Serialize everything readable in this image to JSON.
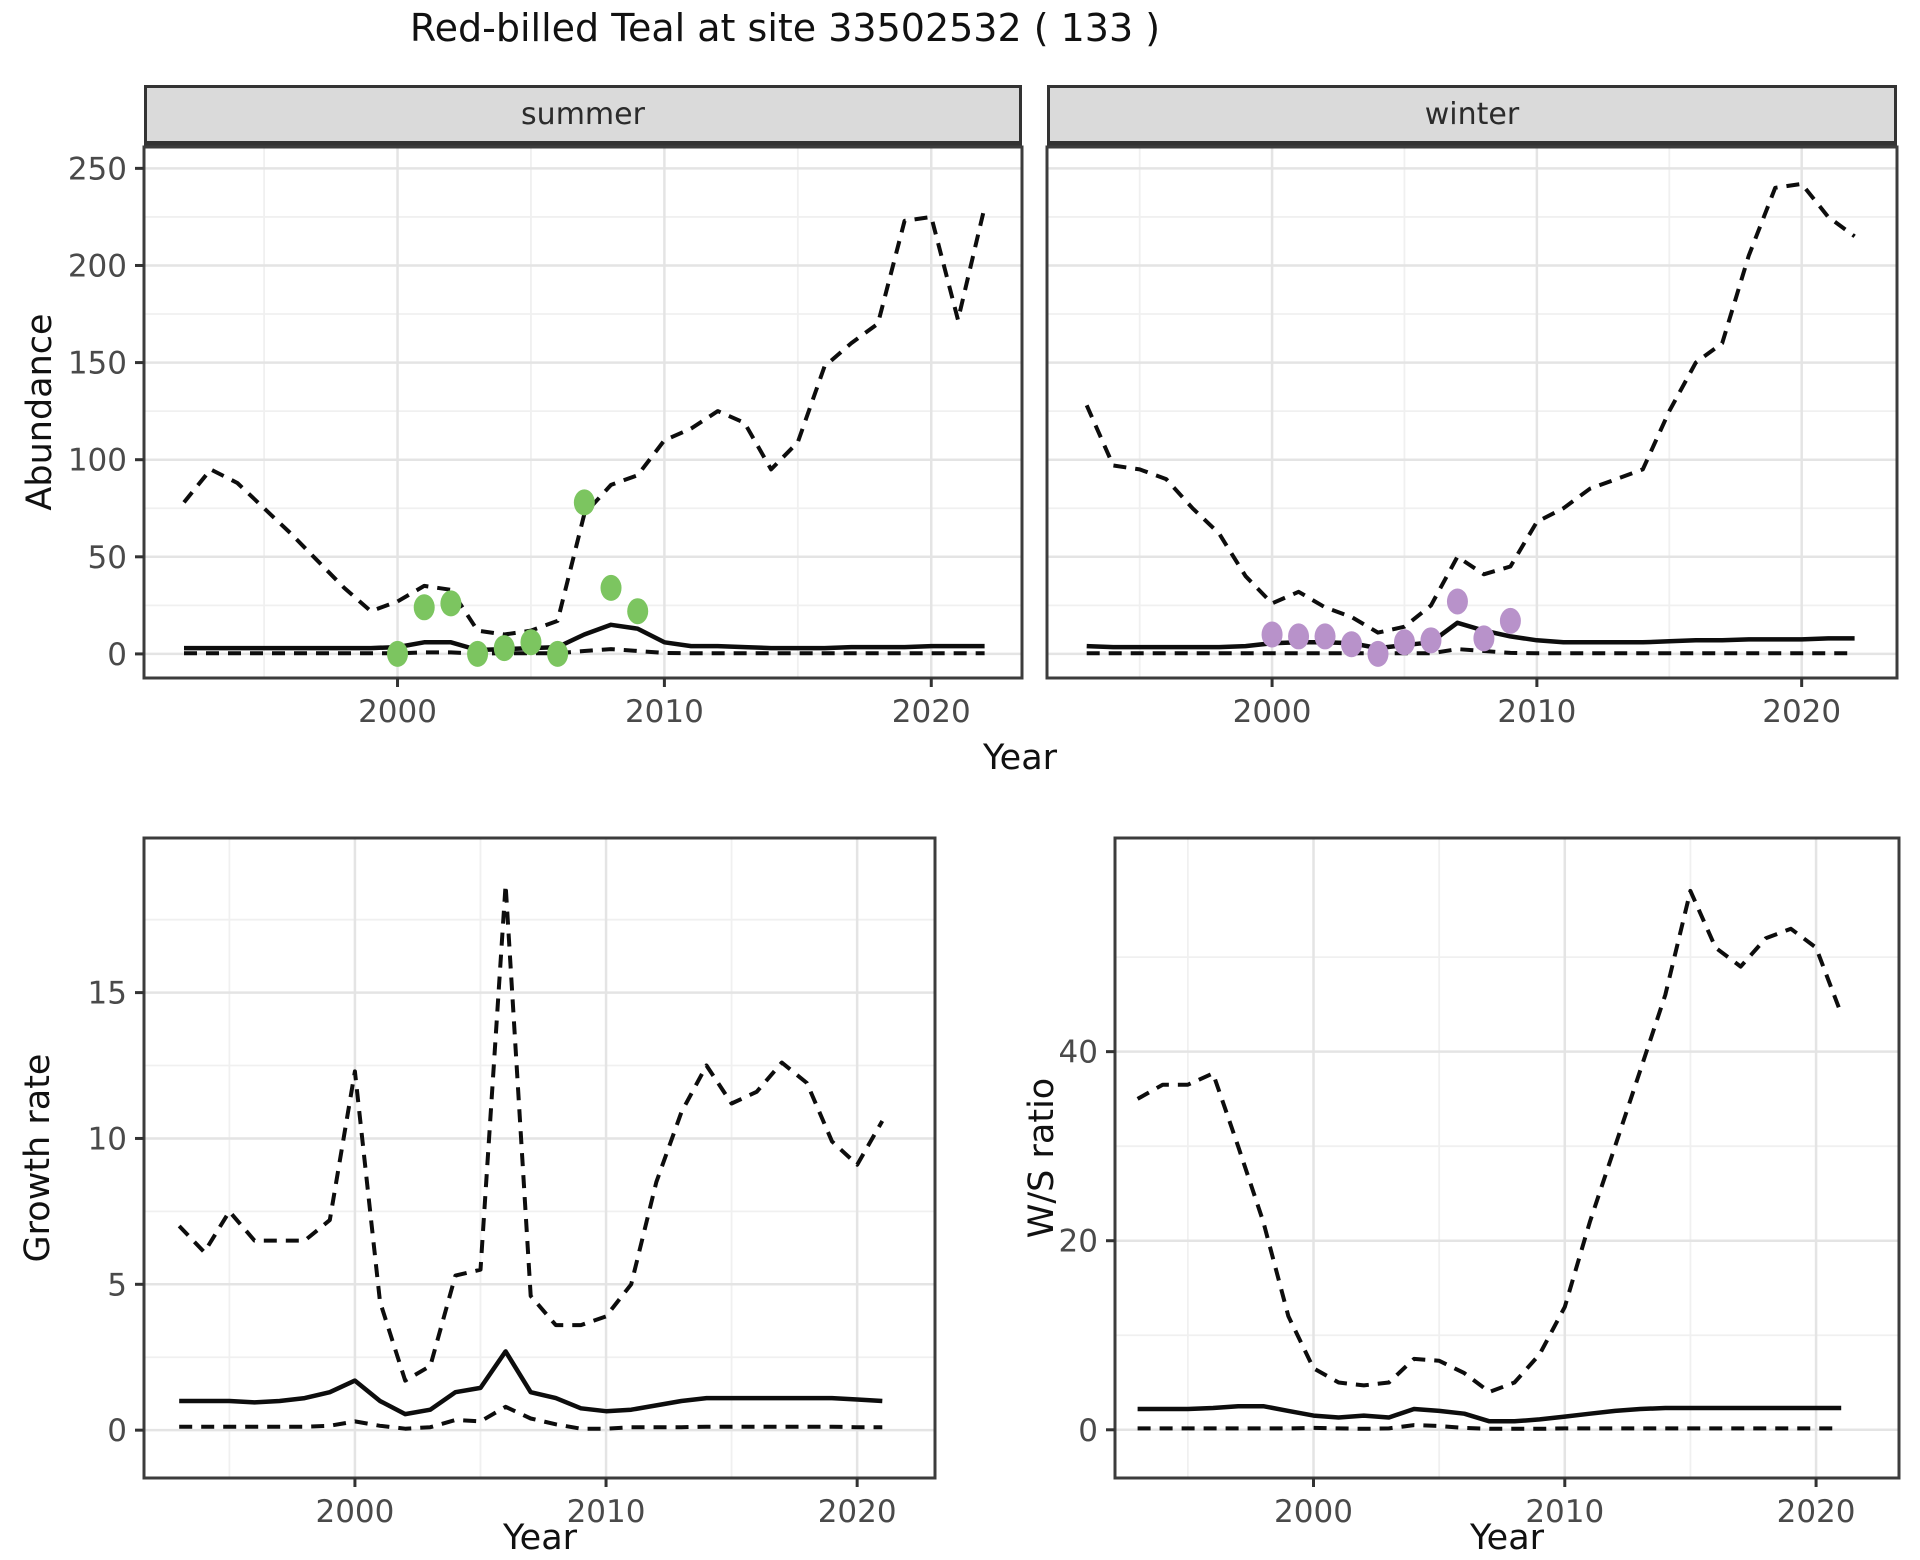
{
  "title": "Red-billed Teal at site 33502532 ( 133 )",
  "facets": {
    "summer": "summer",
    "winter": "winter"
  },
  "axis_titles": {
    "y_top": "Abundance",
    "x_top": "Year",
    "y_bottom_left": "Growth rate",
    "x_bottom_left": "Year",
    "y_bottom_right": "W/S ratio",
    "x_bottom_right": "Year"
  },
  "colors": {
    "summer_points": "#7CC560",
    "winter_points": "#B892CA",
    "line": "#0d0d0d",
    "strip_bg": "#DADADA",
    "panel_border": "#3C3C3C",
    "grid_major": "#E4E4E4",
    "grid_minor": "#F0F0F0",
    "axis_text": "#4a4a4a"
  },
  "chart_data": [
    {
      "id": "abundance_summer",
      "type": "line",
      "facet_label": "summer",
      "xlabel": "Year",
      "ylabel": "Abundance",
      "xlim": [
        1990.5,
        2023.4
      ],
      "ylim": [
        -12.4,
        261
      ],
      "x_ticks": [
        2000,
        2010,
        2020
      ],
      "x_minor": [
        1995,
        2005,
        2015
      ],
      "y_ticks": [
        0,
        50,
        100,
        150,
        200,
        250
      ],
      "y_minor": [
        25,
        75,
        125,
        175,
        225
      ],
      "series": [
        {
          "name": "upper_97_5_percentile",
          "style": "dashed",
          "x": [
            1992,
            1993,
            1994,
            1995,
            1996,
            1997,
            1998,
            1999,
            2000,
            2001,
            2002,
            2003,
            2004,
            2005,
            2006,
            2007,
            2008,
            2009,
            2010,
            2011,
            2012,
            2013,
            2014,
            2015,
            2016,
            2017,
            2018,
            2019,
            2020,
            2021,
            2022
          ],
          "y": [
            78,
            95,
            88,
            75,
            62,
            48,
            34,
            22,
            27,
            35,
            33,
            12,
            10,
            12,
            17,
            72,
            87,
            92,
            110,
            116,
            125,
            119,
            95,
            109,
            148,
            160,
            170,
            223,
            225,
            172,
            230
          ]
        },
        {
          "name": "median_model_estimate",
          "style": "solid",
          "x": [
            1992,
            1993,
            1994,
            1995,
            1996,
            1997,
            1998,
            1999,
            2000,
            2001,
            2002,
            2003,
            2004,
            2005,
            2006,
            2007,
            2008,
            2009,
            2010,
            2011,
            2012,
            2013,
            2014,
            2015,
            2016,
            2017,
            2018,
            2019,
            2020,
            2021,
            2022
          ],
          "y": [
            3,
            3,
            3,
            3,
            3,
            3,
            3,
            3,
            3.5,
            6,
            6,
            2,
            2.5,
            3,
            3.5,
            10,
            15,
            13,
            6,
            4,
            4,
            3.5,
            3,
            3,
            3,
            3.5,
            3.5,
            3.5,
            4,
            4,
            4
          ]
        },
        {
          "name": "lower_2_5_percentile",
          "style": "dashed",
          "x": [
            1992,
            1993,
            1994,
            1995,
            1996,
            1997,
            1998,
            1999,
            2000,
            2001,
            2002,
            2003,
            2004,
            2005,
            2006,
            2007,
            2008,
            2009,
            2010,
            2011,
            2012,
            2013,
            2014,
            2015,
            2016,
            2017,
            2018,
            2019,
            2020,
            2021,
            2022
          ],
          "y": [
            0.3,
            0.3,
            0.3,
            0.3,
            0.3,
            0.3,
            0.3,
            0.3,
            0.3,
            0.8,
            0.8,
            0.2,
            0.3,
            0.3,
            0.3,
            1.5,
            2.5,
            1.5,
            0.5,
            0.3,
            0.3,
            0.3,
            0.3,
            0.3,
            0.3,
            0.3,
            0.3,
            0.3,
            0.3,
            0.3,
            0.3
          ]
        },
        {
          "name": "observed_counts",
          "style": "points",
          "color": "#7CC560",
          "x": [
            2000,
            2001,
            2002,
            2003,
            2004,
            2005,
            2006,
            2007,
            2008,
            2009
          ],
          "y": [
            0,
            24,
            26,
            0,
            3,
            6,
            0,
            78,
            34,
            22
          ]
        }
      ]
    },
    {
      "id": "abundance_winter",
      "type": "line",
      "facet_label": "winter",
      "xlabel": "Year",
      "ylabel": "Abundance",
      "xlim": [
        1991.5,
        2023.6
      ],
      "ylim": [
        -12.4,
        261
      ],
      "x_ticks": [
        2000,
        2010,
        2020
      ],
      "x_minor": [
        1995,
        2005,
        2015
      ],
      "y_ticks": [
        0,
        50,
        100,
        150,
        200,
        250
      ],
      "y_minor": [
        25,
        75,
        125,
        175,
        225
      ],
      "series": [
        {
          "name": "upper_97_5_percentile",
          "style": "dashed",
          "x": [
            1993,
            1994,
            1995,
            1996,
            1997,
            1998,
            1999,
            2000,
            2001,
            2002,
            2003,
            2004,
            2005,
            2006,
            2007,
            2008,
            2009,
            2010,
            2011,
            2012,
            2013,
            2014,
            2015,
            2016,
            2017,
            2018,
            2019,
            2020,
            2021,
            2022
          ],
          "y": [
            128,
            97,
            95,
            90,
            75,
            62,
            40,
            26,
            32,
            24,
            19,
            11,
            14,
            25,
            50,
            41,
            45,
            68,
            75,
            85,
            90,
            95,
            125,
            150,
            160,
            205,
            240,
            242,
            225,
            215
          ]
        },
        {
          "name": "median_model_estimate",
          "style": "solid",
          "x": [
            1993,
            1994,
            1995,
            1996,
            1997,
            1998,
            1999,
            2000,
            2001,
            2002,
            2003,
            2004,
            2005,
            2006,
            2007,
            2008,
            2009,
            2010,
            2011,
            2012,
            2013,
            2014,
            2015,
            2016,
            2017,
            2018,
            2019,
            2020,
            2021,
            2022
          ],
          "y": [
            4,
            3.5,
            3.5,
            3.5,
            3.5,
            3.5,
            4,
            5.5,
            6,
            6,
            5.5,
            3,
            4.5,
            6,
            16,
            12,
            9,
            7,
            6,
            6,
            6,
            6,
            6.5,
            7,
            7,
            7.5,
            7.5,
            7.5,
            8,
            8
          ]
        },
        {
          "name": "lower_2_5_percentile",
          "style": "dashed",
          "x": [
            1993,
            1994,
            1995,
            1996,
            1997,
            1998,
            1999,
            2000,
            2001,
            2002,
            2003,
            2004,
            2005,
            2006,
            2007,
            2008,
            2009,
            2010,
            2011,
            2012,
            2013,
            2014,
            2015,
            2016,
            2017,
            2018,
            2019,
            2020,
            2021,
            2022
          ],
          "y": [
            0.3,
            0.3,
            0.3,
            0.3,
            0.3,
            0.3,
            0.3,
            0.3,
            0.3,
            0.3,
            0.3,
            0.3,
            0.3,
            0.3,
            2.5,
            1.5,
            0.5,
            0.3,
            0.3,
            0.3,
            0.3,
            0.3,
            0.3,
            0.3,
            0.3,
            0.3,
            0.3,
            0.3,
            0.3,
            0.3
          ]
        },
        {
          "name": "observed_counts",
          "style": "points",
          "color": "#B892CA",
          "x": [
            2000,
            2001,
            2002,
            2003,
            2004,
            2005,
            2006,
            2007,
            2008,
            2009
          ],
          "y": [
            10,
            9,
            9,
            5,
            0,
            6,
            7,
            27,
            8,
            17
          ]
        }
      ]
    },
    {
      "id": "growth_rate",
      "type": "line",
      "facet_label": null,
      "xlabel": "Year",
      "ylabel": "Growth rate",
      "xlim": [
        1991.6,
        2023.1
      ],
      "ylim": [
        -1.64,
        20.3
      ],
      "x_ticks": [
        2000,
        2010,
        2020
      ],
      "x_minor": [
        1995,
        2005,
        2015
      ],
      "y_ticks": [
        0,
        5,
        10,
        15
      ],
      "y_minor": [
        2.5,
        7.5,
        12.5,
        17.5
      ],
      "series": [
        {
          "name": "upper_97_5_percentile",
          "style": "dashed",
          "x": [
            1993,
            1994,
            1995,
            1996,
            1997,
            1998,
            1999,
            2000,
            2001,
            2002,
            2003,
            2004,
            2005,
            2006,
            2007,
            2008,
            2009,
            2010,
            2011,
            2012,
            2013,
            2014,
            2015,
            2016,
            2017,
            2018,
            2019,
            2020,
            2021
          ],
          "y": [
            7,
            6.1,
            7.5,
            6.5,
            6.5,
            6.5,
            7.2,
            12.3,
            4.4,
            1.7,
            2.2,
            5.3,
            5.5,
            18.7,
            4.6,
            3.6,
            3.6,
            3.9,
            5,
            8.5,
            10.9,
            12.5,
            11.2,
            11.6,
            12.6,
            11.9,
            9.9,
            9.1,
            10.6
          ]
        },
        {
          "name": "median_model_estimate",
          "style": "solid",
          "x": [
            1993,
            1994,
            1995,
            1996,
            1997,
            1998,
            1999,
            2000,
            2001,
            2002,
            2003,
            2004,
            2005,
            2006,
            2007,
            2008,
            2009,
            2010,
            2011,
            2012,
            2013,
            2014,
            2015,
            2016,
            2017,
            2018,
            2019,
            2020,
            2021
          ],
          "y": [
            1,
            1,
            1,
            0.95,
            1,
            1.1,
            1.3,
            1.7,
            1,
            0.55,
            0.7,
            1.3,
            1.45,
            2.7,
            1.3,
            1.1,
            0.75,
            0.65,
            0.7,
            0.85,
            1,
            1.1,
            1.1,
            1.1,
            1.1,
            1.1,
            1.1,
            1.05,
            1
          ]
        },
        {
          "name": "lower_2_5_percentile",
          "style": "dashed",
          "x": [
            1993,
            1994,
            1995,
            1996,
            1997,
            1998,
            1999,
            2000,
            2001,
            2002,
            2003,
            2004,
            2005,
            2006,
            2007,
            2008,
            2009,
            2010,
            2011,
            2012,
            2013,
            2014,
            2015,
            2016,
            2017,
            2018,
            2019,
            2020,
            2021
          ],
          "y": [
            0.12,
            0.12,
            0.12,
            0.12,
            0.12,
            0.12,
            0.15,
            0.3,
            0.15,
            0.05,
            0.1,
            0.35,
            0.3,
            0.8,
            0.4,
            0.2,
            0.05,
            0.05,
            0.1,
            0.1,
            0.1,
            0.12,
            0.12,
            0.12,
            0.12,
            0.12,
            0.12,
            0.1,
            0.1
          ]
        }
      ]
    },
    {
      "id": "ws_ratio",
      "type": "line",
      "facet_label": null,
      "xlabel": "Year",
      "ylabel": "W/S ratio",
      "xlim": [
        1992.1,
        2023.3
      ],
      "ylim": [
        -5.1,
        62.6
      ],
      "x_ticks": [
        2000,
        2010,
        2020
      ],
      "x_minor": [
        1995,
        2005,
        2015
      ],
      "y_ticks": [
        0,
        20,
        40
      ],
      "y_minor": [
        10,
        30,
        50
      ],
      "series": [
        {
          "name": "upper_97_5_percentile",
          "style": "dashed",
          "x": [
            1993,
            1994,
            1995,
            1996,
            1997,
            1998,
            1999,
            2000,
            2001,
            2002,
            2003,
            2004,
            2005,
            2006,
            2007,
            2008,
            2009,
            2010,
            2011,
            2012,
            2013,
            2014,
            2015,
            2016,
            2017,
            2018,
            2019,
            2020,
            2021
          ],
          "y": [
            35,
            36.5,
            36.5,
            37.7,
            30,
            22,
            12,
            6.5,
            5,
            4.7,
            5,
            7.5,
            7.3,
            6,
            4,
            5,
            8,
            13,
            22,
            30,
            38,
            46,
            57,
            51,
            49,
            52,
            53,
            51,
            44
          ]
        },
        {
          "name": "median_model_estimate",
          "style": "solid",
          "x": [
            1993,
            1994,
            1995,
            1996,
            1997,
            1998,
            1999,
            2000,
            2001,
            2002,
            2003,
            2004,
            2005,
            2006,
            2007,
            2008,
            2009,
            2010,
            2011,
            2012,
            2013,
            2014,
            2015,
            2016,
            2017,
            2018,
            2019,
            2020,
            2021
          ],
          "y": [
            2.2,
            2.2,
            2.2,
            2.3,
            2.5,
            2.5,
            2,
            1.5,
            1.3,
            1.5,
            1.3,
            2.2,
            2,
            1.7,
            0.9,
            0.9,
            1.1,
            1.4,
            1.7,
            2,
            2.2,
            2.3,
            2.3,
            2.3,
            2.3,
            2.3,
            2.3,
            2.3,
            2.3
          ]
        },
        {
          "name": "lower_2_5_percentile",
          "style": "dashed",
          "x": [
            1993,
            1994,
            1995,
            1996,
            1997,
            1998,
            1999,
            2000,
            2001,
            2002,
            2003,
            2004,
            2005,
            2006,
            2007,
            2008,
            2009,
            2010,
            2011,
            2012,
            2013,
            2014,
            2015,
            2016,
            2017,
            2018,
            2019,
            2020,
            2021
          ],
          "y": [
            0.15,
            0.15,
            0.15,
            0.15,
            0.15,
            0.15,
            0.15,
            0.2,
            0.15,
            0.1,
            0.15,
            0.5,
            0.4,
            0.2,
            0.1,
            0.1,
            0.1,
            0.15,
            0.15,
            0.15,
            0.15,
            0.15,
            0.15,
            0.15,
            0.15,
            0.15,
            0.15,
            0.15,
            0.15
          ]
        }
      ]
    }
  ]
}
